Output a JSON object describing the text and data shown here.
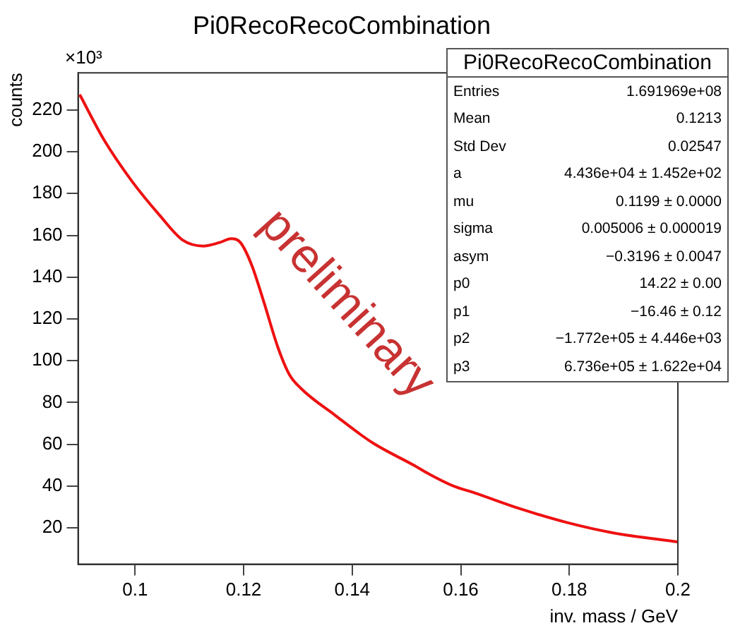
{
  "chart_data": {
    "type": "line",
    "title": "Pi0RecoRecoCombination",
    "xlabel": "inv. mass / GeV",
    "ylabel": "counts",
    "x": [
      0.0898,
      0.0943,
      0.0994,
      0.1045,
      0.1088,
      0.1126,
      0.1156,
      0.1177,
      0.1194,
      0.1215,
      0.1237,
      0.1263,
      0.1284,
      0.1305,
      0.1369,
      0.1437,
      0.1514,
      0.154,
      0.1586,
      0.1625,
      0.171,
      0.1795,
      0.1881,
      0.2
    ],
    "series": [
      {
        "color": "#ee1111",
        "values": [
          227.4,
          205.6,
          186.0,
          169.7,
          157.7,
          154.9,
          156.6,
          158.4,
          156.6,
          145.7,
          128.3,
          106.5,
          93.5,
          86.9,
          73.8,
          60.8,
          49.9,
          46.0,
          40.1,
          36.8,
          29.1,
          22.6,
          17.6,
          13.3
        ]
      }
    ],
    "xlim": [
      0.0895,
      0.2
    ],
    "xticks": [
      0.1,
      0.12,
      0.14,
      0.16,
      0.18,
      0.2
    ],
    "ylim": [
      2.6,
      237.8
    ],
    "yticks": [
      20,
      40,
      60,
      80,
      100,
      120,
      140,
      160,
      180,
      200,
      220
    ],
    "grid": false,
    "legend": false,
    "marker": "none",
    "line_style": "solid",
    "annotations": [
      "×10³",
      "preliminary",
      "Pi0RecoRecoCombination",
      "Entries  1.691969e+08",
      "Mean  0.1213",
      "Std Dev  0.02547",
      "a  4.436e+04 ± 1.452e+02",
      "mu  0.1199 ± 0.0000",
      "sigma  0.005006 ± 0.000019",
      "asym  −0.3196 ± 0.0047",
      "p0  14.22 ± 0.00",
      "p1  −16.46 ± 0.12",
      "p2  −1.772e+05 ± 4.446e+03",
      "p3  6.736e+05 ± 1.622e+04"
    ]
  }
}
